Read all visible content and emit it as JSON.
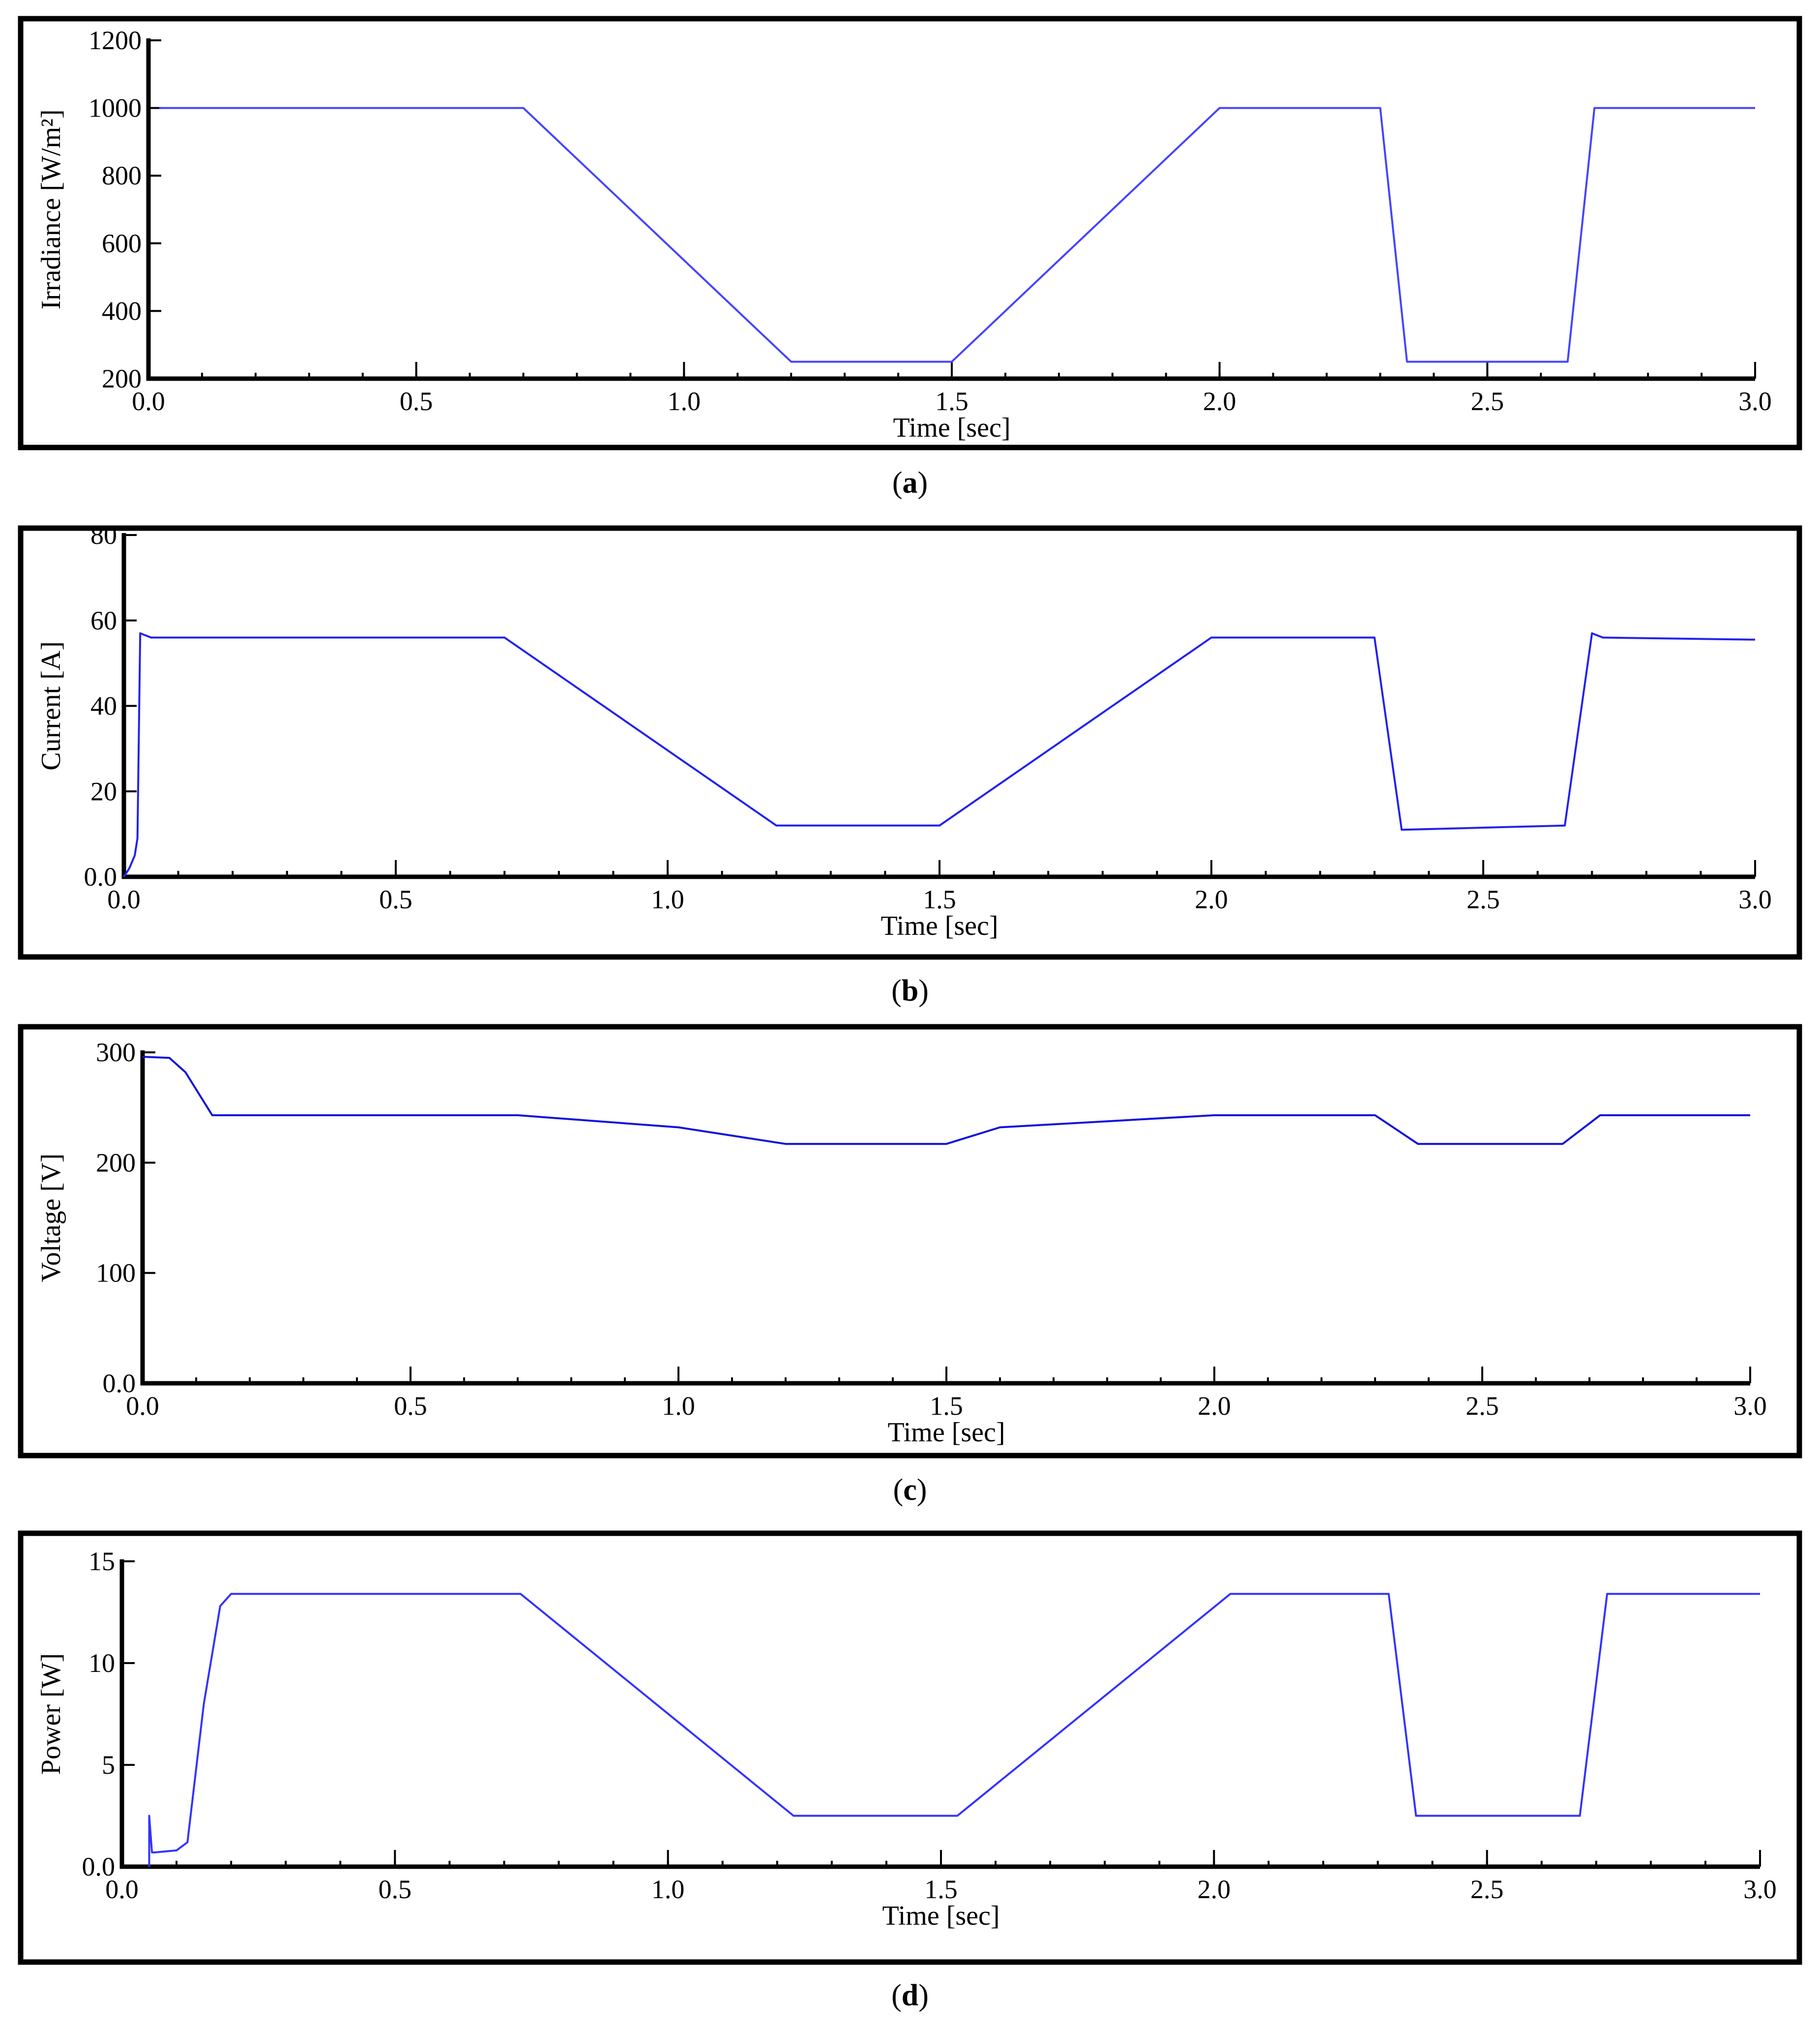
{
  "chart_data": [
    {
      "type": "line",
      "caption_letter": "a",
      "xlabel": "Time [sec]",
      "ylabel": "Irradiance [W/m²]",
      "xlim": [
        0,
        3.0
      ],
      "ylim": [
        200,
        1200
      ],
      "x_ticks": [
        "0.0",
        "0.5",
        "1.0",
        "1.5",
        "2.0",
        "2.5",
        "3.0"
      ],
      "y_ticks": [
        "200",
        "400",
        "600",
        "800",
        "1000",
        "1200"
      ],
      "line_color": "#4444ff",
      "series": [
        {
          "x": [
            0.02,
            0.7,
            1.2,
            1.5,
            2.0,
            2.3,
            2.35,
            2.65,
            2.7,
            3.0
          ],
          "y": [
            1000,
            1000,
            250,
            250,
            1000,
            1000,
            250,
            250,
            1000,
            1000
          ]
        }
      ]
    },
    {
      "type": "line",
      "caption_letter": "b",
      "xlabel": "Time [sec]",
      "ylabel": "Current [A]",
      "xlim": [
        0,
        3.0
      ],
      "ylim": [
        0,
        80
      ],
      "x_ticks": [
        "0.0",
        "0.5",
        "1.0",
        "1.5",
        "2.0",
        "2.5",
        "3.0"
      ],
      "y_ticks": [
        "0.0",
        "20",
        "40",
        "60",
        "80"
      ],
      "line_color": "#2222ee",
      "series": [
        {
          "x": [
            0.0,
            0.01,
            0.02,
            0.025,
            0.03,
            0.05,
            0.7,
            1.2,
            1.5,
            2.0,
            2.3,
            2.35,
            2.65,
            2.7,
            2.72,
            3.0
          ],
          "y": [
            0,
            2,
            5,
            9,
            57,
            56,
            56,
            12,
            12,
            56,
            56,
            11,
            12,
            57,
            56,
            55.5
          ]
        }
      ]
    },
    {
      "type": "line",
      "caption_letter": "c",
      "xlabel": "Time [sec]",
      "ylabel": "Voltage [V]",
      "xlim": [
        0,
        3.0
      ],
      "ylim": [
        0,
        300
      ],
      "x_ticks": [
        "0.0",
        "0.5",
        "1.0",
        "1.5",
        "2.0",
        "2.5",
        "3.0"
      ],
      "y_ticks": [
        "0.0",
        "100",
        "200",
        "300"
      ],
      "line_color": "#1111dd",
      "series": [
        {
          "x": [
            0.0,
            0.05,
            0.08,
            0.13,
            0.7,
            1.0,
            1.2,
            1.5,
            1.6,
            2.0,
            2.3,
            2.38,
            2.65,
            2.72,
            3.0
          ],
          "y": [
            296,
            295,
            282,
            243,
            243,
            232,
            217,
            217,
            232,
            243,
            243,
            217,
            217,
            243,
            243
          ]
        }
      ]
    },
    {
      "type": "line",
      "caption_letter": "d",
      "xlabel": "Time [sec]",
      "ylabel": "Power [W]",
      "xlim": [
        0,
        3.0
      ],
      "ylim": [
        0,
        15
      ],
      "x_ticks": [
        "0.0",
        "0.5",
        "1.0",
        "1.5",
        "2.0",
        "2.5",
        "3.0"
      ],
      "y_ticks": [
        "0.0",
        "5",
        "10",
        "15"
      ],
      "line_color": "#3333ff",
      "series": [
        {
          "x": [
            0.05,
            0.05,
            0.055,
            0.06,
            0.1,
            0.12,
            0.15,
            0.18,
            0.2,
            0.73,
            1.23,
            1.53,
            2.03,
            2.32,
            2.37,
            2.67,
            2.72,
            3.0
          ],
          "y": [
            0,
            2.5,
            0.7,
            0.7,
            0.8,
            1.2,
            8,
            12.8,
            13.4,
            13.4,
            2.5,
            2.5,
            13.4,
            13.4,
            2.5,
            2.5,
            13.4,
            13.4
          ]
        }
      ]
    }
  ]
}
